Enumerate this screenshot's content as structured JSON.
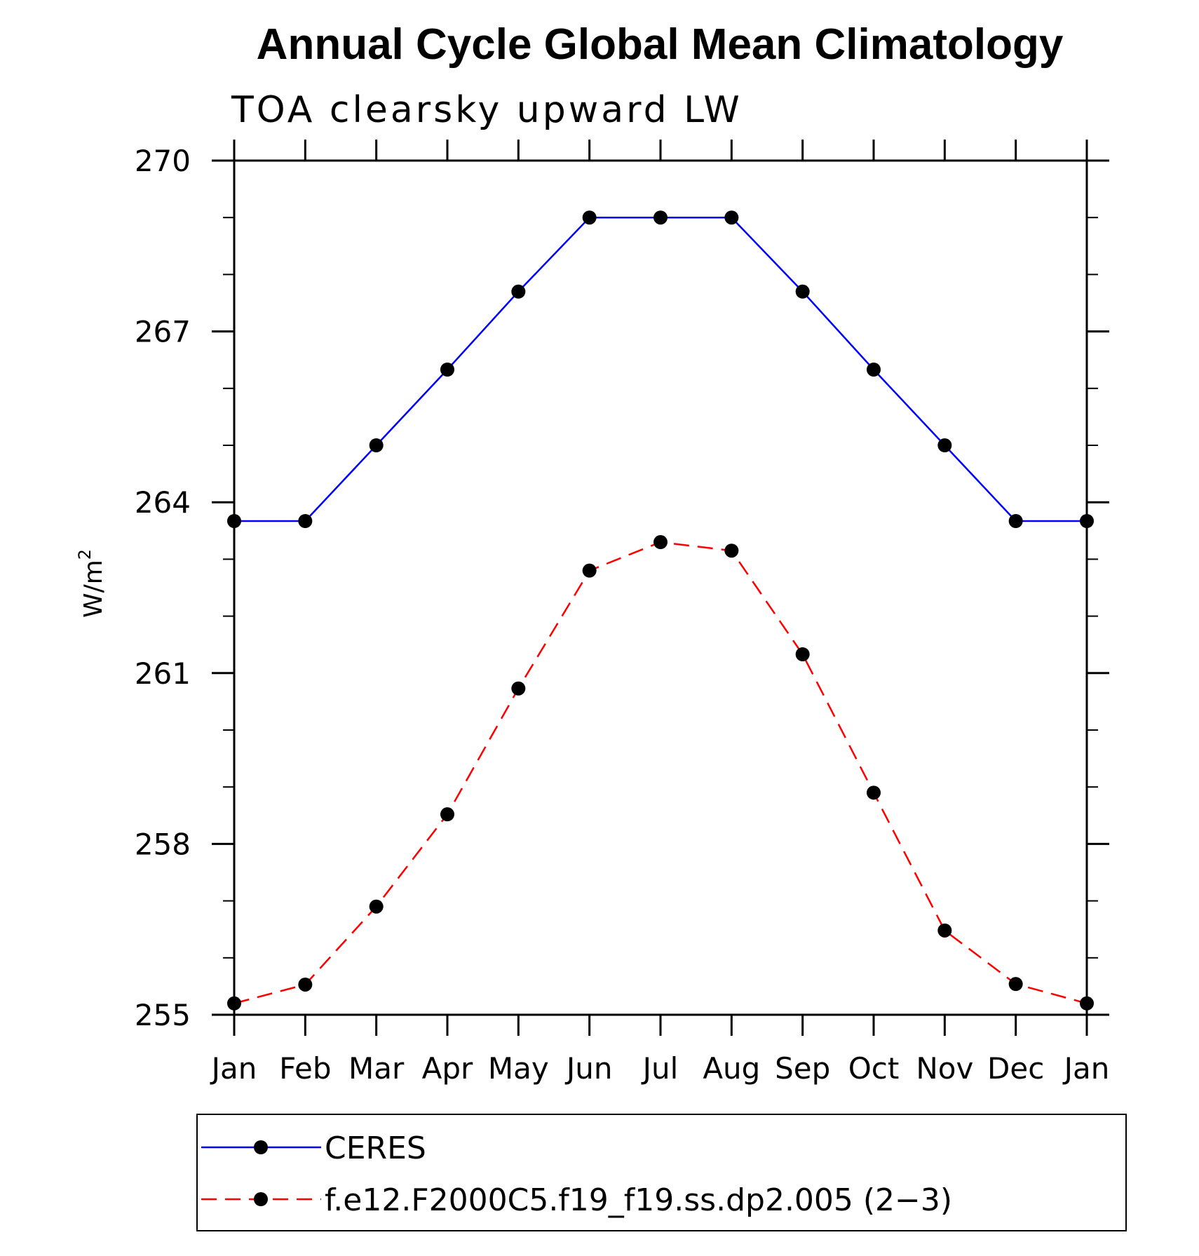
{
  "chart_data": {
    "type": "line",
    "title": "Annual Cycle Global Mean Climatology",
    "subtitle": "TOA clearsky upward LW",
    "ylabel_base": "W/m",
    "ylabel_sup": "2",
    "xlabel": "",
    "categories": [
      "Jan",
      "Feb",
      "Mar",
      "Apr",
      "May",
      "Jun",
      "Jul",
      "Aug",
      "Sep",
      "Oct",
      "Nov",
      "Dec",
      "Jan"
    ],
    "ylim": [
      255,
      270
    ],
    "yticks": [
      "255",
      "258",
      "261",
      "264",
      "267",
      "270"
    ],
    "grid": false,
    "legend_position": "bottom",
    "series": [
      {
        "name": "CERES",
        "color": "#0000ff",
        "dashed": false,
        "values": [
          263.67,
          263.67,
          265.0,
          266.33,
          267.7,
          269.0,
          269.0,
          269.0,
          267.7,
          266.33,
          265.0,
          263.67,
          263.67
        ]
      },
      {
        "name": "f.e12.F2000C5.f19_f19.ss.dp2.005 (2−3)",
        "color": "#ff0000",
        "dashed": true,
        "values": [
          255.2,
          255.53,
          256.9,
          258.52,
          260.73,
          262.8,
          263.3,
          263.15,
          261.33,
          258.9,
          256.48,
          255.54,
          255.2
        ]
      }
    ]
  }
}
